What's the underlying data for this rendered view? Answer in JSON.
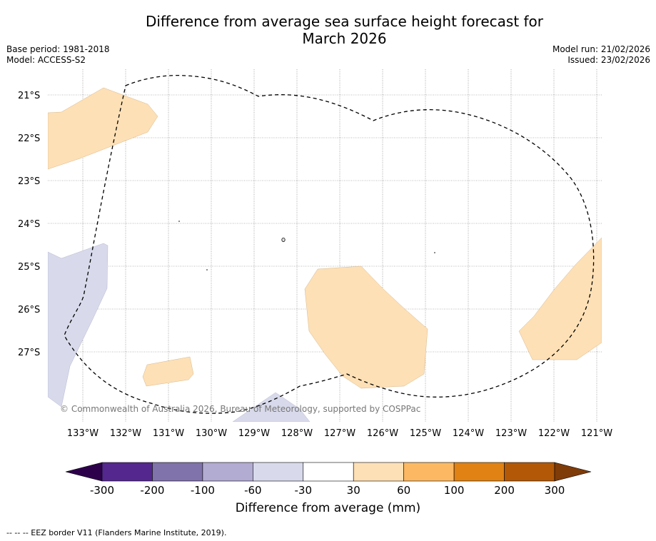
{
  "title_line1": "Difference from average sea surface height forecast for",
  "title_line2": "March 2026",
  "base_period": "Base period: 1981-2018",
  "model": "Model: ACCESS-S2",
  "model_run": "Model run: 21/02/2026",
  "issued": "Issued: 23/02/2026",
  "copyright": "© Commonwealth of Australia 2026, Bureau of Meteorology, supported by COSPPac",
  "lat_labels": [
    "21°S",
    "22°S",
    "23°S",
    "24°S",
    "25°S",
    "26°S",
    "27°S"
  ],
  "lon_labels": [
    "133°W",
    "132°W",
    "131°W",
    "130°W",
    "129°W",
    "128°W",
    "127°W",
    "126°W",
    "125°W",
    "124°W",
    "123°W",
    "122°W",
    "121°W"
  ],
  "colorbar": {
    "title": "Difference from average (mm)",
    "ticks": [
      "-300",
      "-200",
      "-100",
      "-60",
      "-30",
      "30",
      "60",
      "100",
      "200",
      "300"
    ],
    "colors": [
      "#54278f",
      "#8073ac",
      "#b2abd2",
      "#d8daeb",
      "#ffffff",
      "#fee0b6",
      "#fdb863",
      "#e08214",
      "#b35806"
    ],
    "under_color": "#2d004b",
    "over_color": "#7f3b08"
  },
  "eez_note": "--  --  -- EEZ border V11 (Flanders Marine Institute, 2019)."
}
